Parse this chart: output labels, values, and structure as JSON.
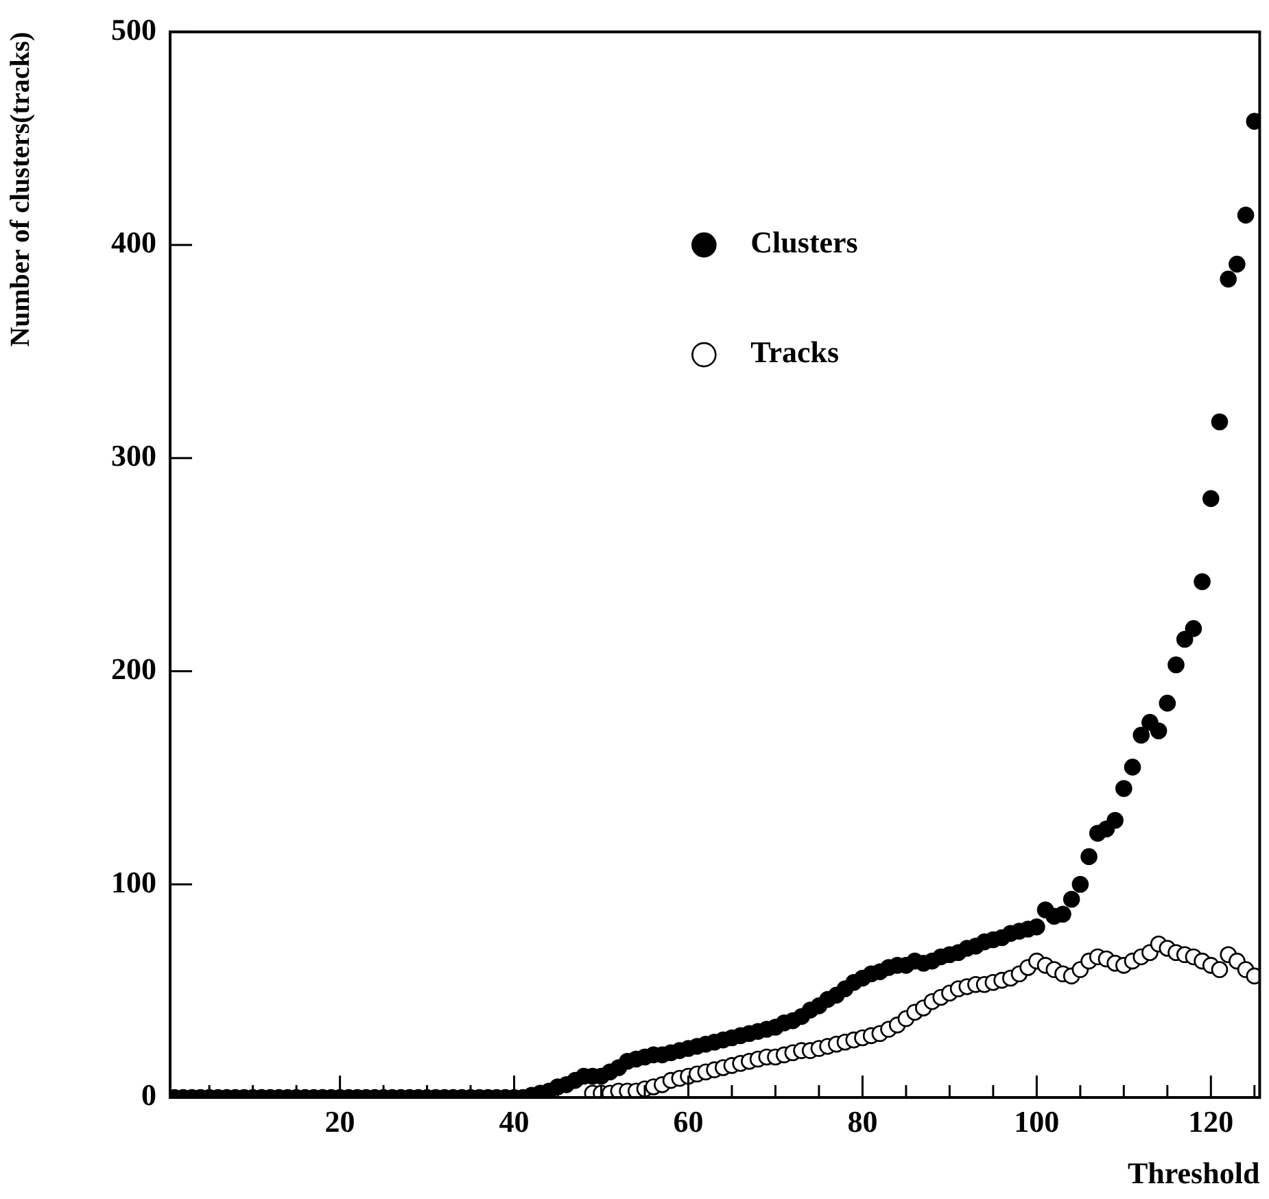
{
  "chart_data": {
    "type": "scatter",
    "xlabel": "Threshold",
    "ylabel": "Number of clusters(tracks)",
    "xlim": [
      0.5,
      125.6
    ],
    "ylim": [
      0,
      500
    ],
    "xticks": [
      {
        "value": 5,
        "label": null
      },
      {
        "value": 10,
        "label": null
      },
      {
        "value": 15,
        "label": null
      },
      20,
      {
        "value": 25,
        "label": null
      },
      {
        "value": 30,
        "label": null
      },
      {
        "value": 35,
        "label": null
      },
      40,
      {
        "value": 45,
        "label": null
      },
      {
        "value": 50,
        "label": null
      },
      {
        "value": 55,
        "label": null
      },
      60,
      {
        "value": 65,
        "label": null
      },
      {
        "value": 70,
        "label": null
      },
      {
        "value": 75,
        "label": null
      },
      80,
      {
        "value": 85,
        "label": null
      },
      {
        "value": 90,
        "label": null
      },
      {
        "value": 95,
        "label": null
      },
      100,
      {
        "value": 105,
        "label": null
      },
      {
        "value": 110,
        "label": null
      },
      {
        "value": 115,
        "label": null
      },
      120,
      {
        "value": 125,
        "label": null
      }
    ],
    "yticks": [
      0,
      100,
      200,
      300,
      400,
      500
    ],
    "grid": false,
    "legend": "top",
    "marker": "circle",
    "series": [
      {
        "name": "Clusters",
        "color": "#000000",
        "x": [
          1,
          2,
          3,
          4,
          5,
          6,
          7,
          8,
          9,
          10,
          11,
          12,
          13,
          14,
          15,
          16,
          17,
          18,
          19,
          20,
          21,
          22,
          23,
          24,
          25,
          26,
          27,
          28,
          29,
          30,
          31,
          32,
          33,
          34,
          35,
          36,
          37,
          38,
          39,
          40,
          41,
          42,
          43,
          44,
          45,
          46,
          47,
          48,
          49,
          50,
          51,
          52,
          53,
          54,
          55,
          56,
          57,
          58,
          59,
          60,
          61,
          62,
          63,
          64,
          65,
          66,
          67,
          68,
          69,
          70,
          71,
          72,
          73,
          74,
          75,
          76,
          77,
          78,
          79,
          80,
          81,
          82,
          83,
          84,
          85,
          86,
          87,
          88,
          89,
          90,
          91,
          92,
          93,
          94,
          95,
          96,
          97,
          98,
          99,
          100,
          101,
          102,
          103,
          104,
          105,
          106,
          107,
          108,
          109,
          110,
          111,
          112,
          113,
          114,
          115,
          116,
          117,
          118,
          119,
          120,
          121,
          122,
          123,
          124,
          125
        ],
        "values": [
          0,
          0,
          0,
          0,
          0,
          0,
          0,
          0,
          0,
          0,
          0,
          0,
          0,
          0,
          0,
          0,
          0,
          0,
          0,
          0,
          0,
          0,
          0,
          0,
          0,
          0,
          0,
          0,
          0,
          0,
          0,
          0,
          0,
          0,
          0,
          0,
          0,
          0,
          0,
          0,
          0,
          1,
          2,
          3,
          5,
          6,
          8,
          10,
          10,
          10,
          12,
          14,
          17,
          18,
          19,
          20,
          20,
          21,
          22,
          23,
          24,
          25,
          26,
          27,
          28,
          29,
          30,
          31,
          32,
          33,
          35,
          36,
          38,
          41,
          43,
          46,
          48,
          51,
          54,
          56,
          58,
          59,
          61,
          62,
          62,
          64,
          63,
          64,
          66,
          67,
          68,
          70,
          71,
          73,
          74,
          75,
          77,
          78,
          79,
          80,
          88,
          85,
          86,
          93,
          100,
          113,
          124,
          126,
          130,
          145,
          155,
          170,
          176,
          172,
          185,
          203,
          215,
          220,
          242,
          281,
          317,
          384,
          391,
          414,
          458
        ]
      },
      {
        "name": "Tracks",
        "color": "#ffffff",
        "x": [
          49,
          50,
          51,
          52,
          53,
          54,
          55,
          56,
          57,
          58,
          59,
          60,
          61,
          62,
          63,
          64,
          65,
          66,
          67,
          68,
          69,
          70,
          71,
          72,
          73,
          74,
          75,
          76,
          77,
          78,
          79,
          80,
          81,
          82,
          83,
          84,
          85,
          86,
          87,
          88,
          89,
          90,
          91,
          92,
          93,
          94,
          95,
          96,
          97,
          98,
          99,
          100,
          101,
          102,
          103,
          104,
          105,
          106,
          107,
          108,
          109,
          110,
          111,
          112,
          113,
          114,
          115,
          116,
          117,
          118,
          119,
          120,
          121,
          122,
          123,
          124,
          125
        ],
        "values": [
          2,
          2,
          2,
          3,
          3,
          3,
          4,
          5,
          6,
          8,
          9,
          10,
          11,
          12,
          13,
          14,
          15,
          16,
          17,
          18,
          19,
          19,
          20,
          21,
          22,
          22,
          23,
          24,
          25,
          26,
          27,
          28,
          29,
          30,
          32,
          34,
          37,
          40,
          42,
          45,
          47,
          49,
          51,
          52,
          53,
          53,
          54,
          55,
          56,
          58,
          61,
          64,
          62,
          60,
          58,
          57,
          60,
          64,
          66,
          65,
          63,
          62,
          64,
          66,
          68,
          72,
          70,
          68,
          67,
          66,
          64,
          62,
          60,
          67,
          64,
          60,
          57
        ]
      }
    ]
  }
}
